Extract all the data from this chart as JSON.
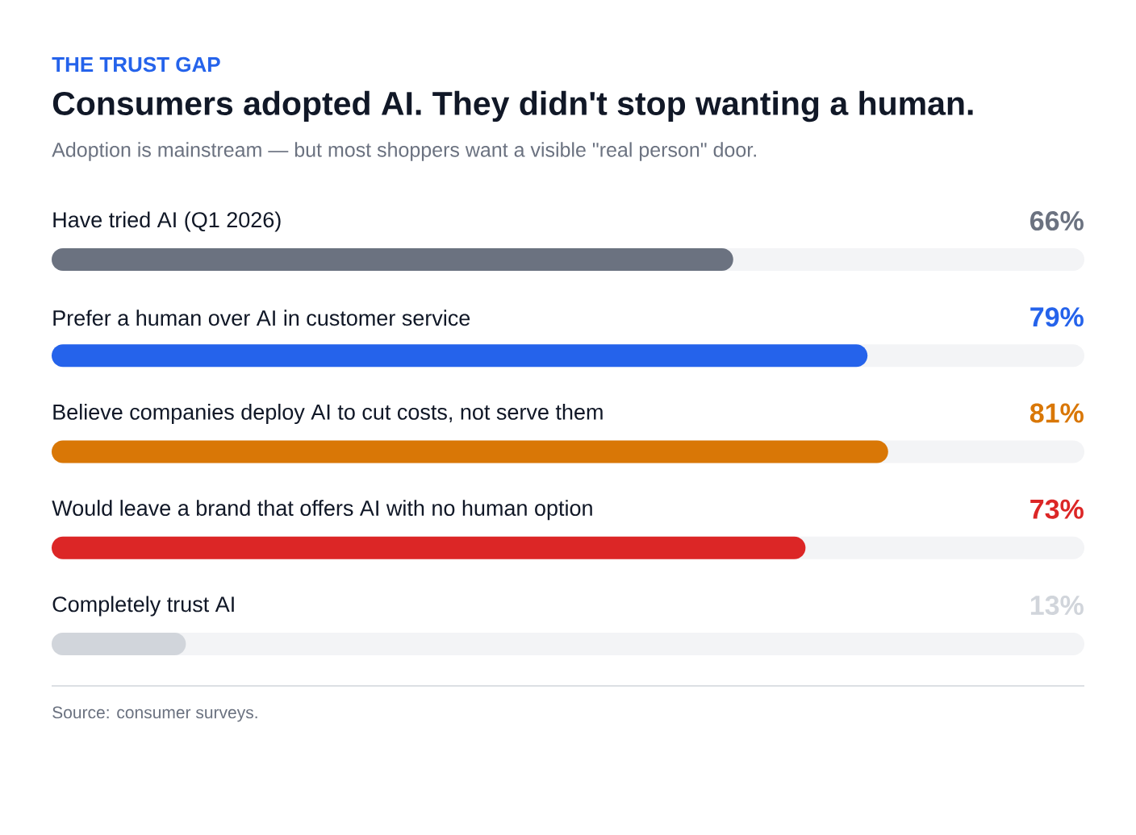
{
  "chart_data": {
    "type": "bar",
    "orientation": "horizontal",
    "title": "Consumers adopted AI. They didn't stop wanting a human.",
    "subtitle": "Adoption is mainstream — but most shoppers want a visible \"real person\" door.",
    "annotations": [
      "THE TRUST GAP",
      "Source: consumer surveys."
    ],
    "categories": [
      "Have tried AI (Q1 2026)",
      "Prefer a human over AI in customer service",
      "Believe companies deploy AI to cut costs, not serve them",
      "Would leave a brand that offers AI with no human option",
      "Completely trust AI"
    ],
    "values": [
      66,
      79,
      81,
      73,
      13
    ],
    "colors": [
      "#6b7280",
      "#2563eb",
      "#d97706",
      "#dc2626",
      "#d1d5db"
    ],
    "value_labels": [
      "66%",
      "79%",
      "81%",
      "73%",
      "13%"
    ],
    "xlim": [
      0,
      100
    ],
    "tick_labels": false
  }
}
